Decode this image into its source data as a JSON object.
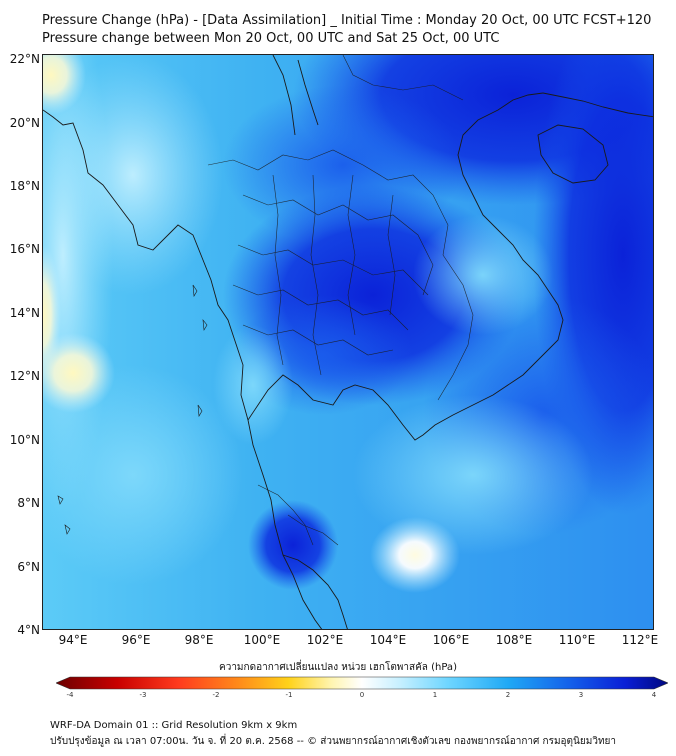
{
  "header": {
    "title_line1": "Pressure Change (hPa) - [Data Assimilation] _ Initial Time : Monday 20 Oct, 00 UTC FCST+120",
    "title_line2": "Pressure change between Mon 20 Oct, 00 UTC and Sat 25 Oct, 00 UTC"
  },
  "map": {
    "lat_labels": [
      "22°N",
      "20°N",
      "18°N",
      "16°N",
      "14°N",
      "12°N",
      "10°N",
      "8°N",
      "6°N",
      "4°N"
    ],
    "lon_labels": [
      "94°E",
      "96°E",
      "98°E",
      "100°E",
      "102°E",
      "104°E",
      "106°E",
      "108°E",
      "110°E",
      "112°E"
    ],
    "lat_range": [
      4,
      22.2
    ],
    "lon_range": [
      93,
      112.5
    ],
    "colors": {
      "background_light": "#4fc3f7",
      "dark_low": "#0a2be0",
      "mid_blue": "#1e6ff0",
      "positive_yellow": "#fff6b0",
      "border": "#1a1a1a"
    }
  },
  "colorbar": {
    "label": "ความกดอากาศเปลี่ยนแปลง หน่วย เฮกโตพาสคัล (hPa)",
    "tick_labels": [
      "-4",
      "-3",
      "-2",
      "-1",
      "0",
      "1",
      "2",
      "3",
      "4"
    ],
    "range": [
      -4,
      4
    ],
    "colors": [
      "#6b0000",
      "#c80000",
      "#ff3b1e",
      "#ff8c1a",
      "#ffd21a",
      "#fff5b0",
      "#ffffff",
      "#c8f0ff",
      "#6fd6ff",
      "#1fa8f5",
      "#1460ea",
      "#0a1fd6",
      "#000880"
    ]
  },
  "footer": {
    "line1": "WRF-DA Domain 01 :: Grid Resolution 9km x 9km",
    "line2": "ปรับปรุงข้อมูล ณ เวลา 07:00น. วัน จ. ที่ 20 ต.ค. 2568 -- © ส่วนพยากรณ์อากาศเชิงตัวเลข กองพยากรณ์อากาศ กรมอุตุนิยมวิทยา"
  }
}
